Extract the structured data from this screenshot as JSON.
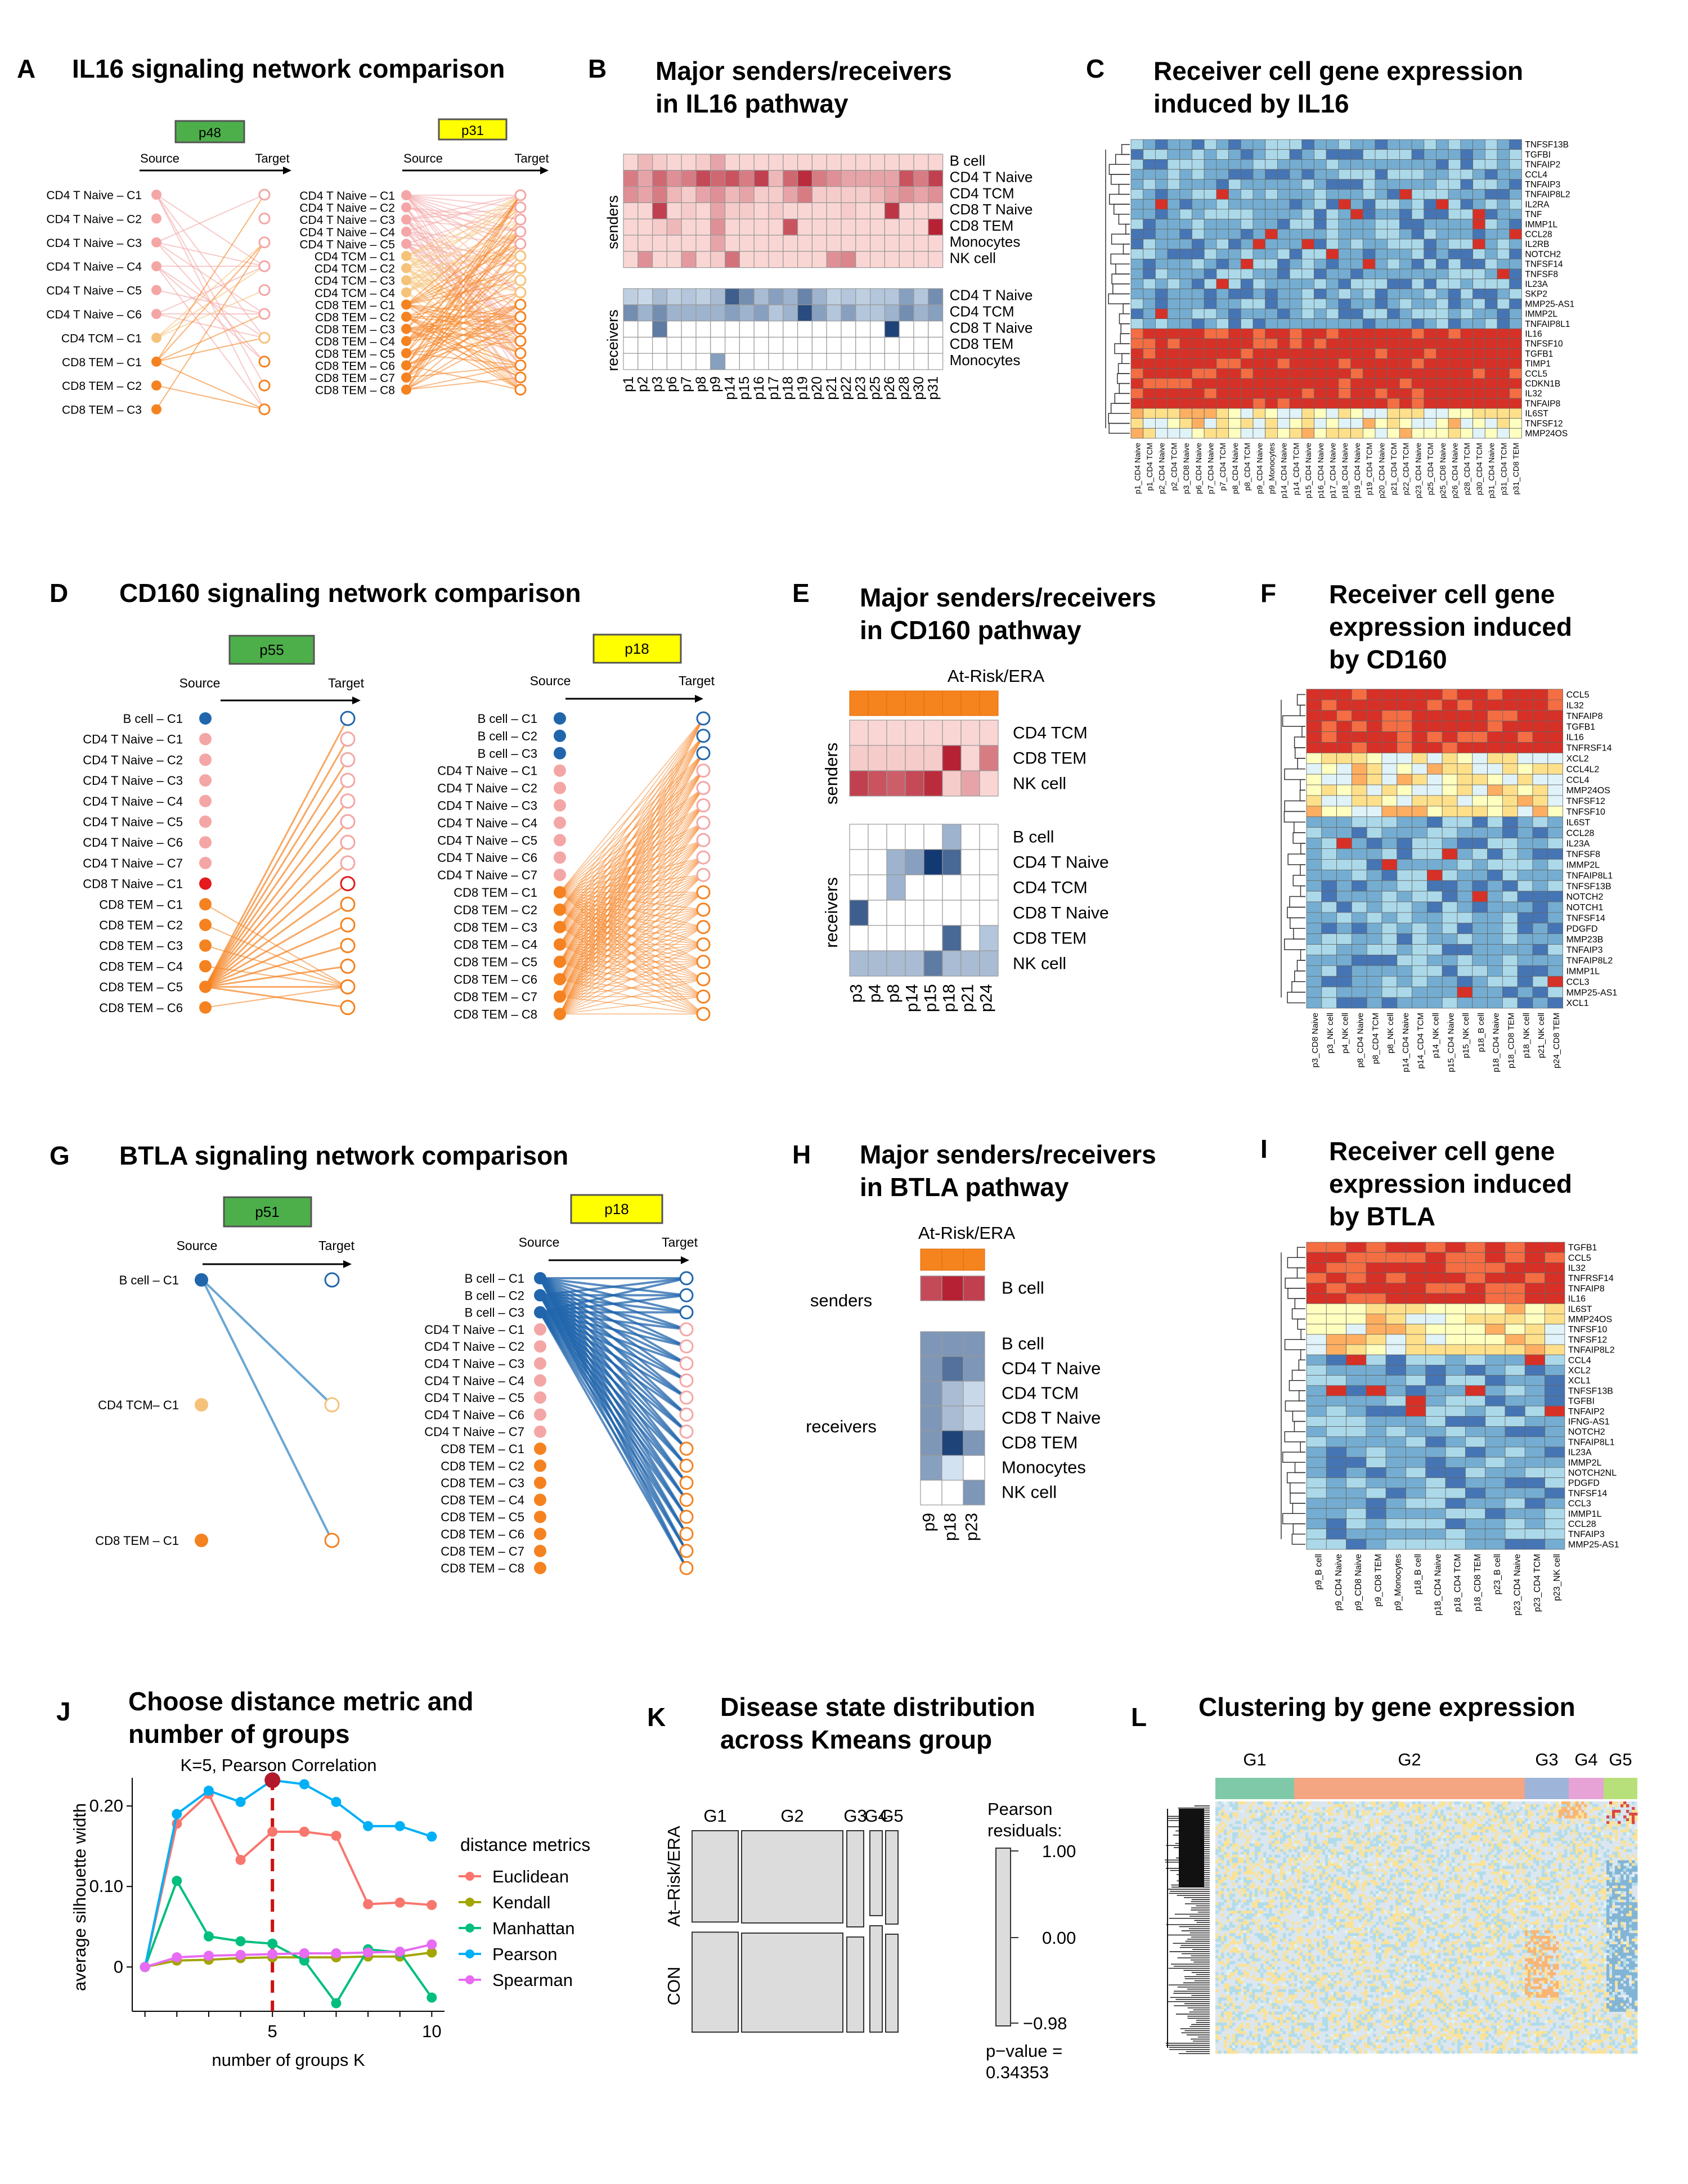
{
  "colors": {
    "senders_high": "#b2182b",
    "senders_low": "#fde0dd",
    "receivers_high": "#08306b",
    "receivers_low": "#deebf7",
    "box_green": "#4daf4a",
    "box_yellow": "#ffff00",
    "at_risk_orange": "#f5841f",
    "naive_pink": "#f4a6a6",
    "tcm_light_orange": "#f6c27a",
    "tem_orange": "#f58220",
    "bcell_blue": "#2166ac",
    "naive_red": "#e41a1c",
    "cluster_G1": "#7fc9a8",
    "cluster_G2": "#f4a582",
    "cluster_G3": "#9fb4d9",
    "cluster_G4": "#e7a3d6",
    "cluster_G5": "#b8e07a"
  },
  "panelA": {
    "letter": "A",
    "title": "IL16 signaling network comparison",
    "left_box": "p48",
    "right_box": "p31",
    "source": "Source",
    "target": "Target",
    "left_nodes": [
      "CD4 T Naive – C1",
      "CD4 T Naive – C2",
      "CD4 T Naive – C3",
      "CD4 T Naive – C4",
      "CD4 T Naive – C5",
      "CD4 T Naive – C6",
      "CD4 TCM – C1",
      "CD8 TEM – C1",
      "CD8 TEM – C2",
      "CD8 TEM – C3"
    ],
    "right_nodes": [
      "CD4 T Naive – C1",
      "CD4 T Naive – C2",
      "CD4 T Naive – C3",
      "CD4 T Naive – C4",
      "CD4 T Naive – C5",
      "CD4 TCM – C1",
      "CD4 TCM – C2",
      "CD4 TCM – C3",
      "CD4 TCM – C4",
      "CD8 TEM – C1",
      "CD8 TEM – C2",
      "CD8 TEM – C3",
      "CD8 TEM – C4",
      "CD8 TEM – C5",
      "CD8 TEM – C6",
      "CD8 TEM – C7",
      "CD8 TEM – C8"
    ]
  },
  "panelB": {
    "letter": "B",
    "title_line1": "Major senders/receivers",
    "title_line2": "in IL16 pathway",
    "senders_label": "senders",
    "receivers_label": "receivers",
    "sender_rows": [
      "B cell",
      "CD4 T Naive",
      "CD4 TCM",
      "CD8 T Naive",
      "CD8 TEM",
      "Monocytes",
      "NK cell"
    ],
    "receiver_rows": [
      "CD4 T Naive",
      "CD4 TCM",
      "CD8 T Naive",
      "CD8 TEM",
      "Monocytes"
    ],
    "columns": [
      "p1",
      "p2",
      "p3",
      "p6",
      "p7",
      "p8",
      "p9",
      "p14",
      "p15",
      "p16",
      "p17",
      "p18",
      "p19",
      "p20",
      "p21",
      "p22",
      "p23",
      "p25",
      "p26",
      "p28",
      "p30",
      "p31"
    ],
    "sender_values": [
      [
        0.05,
        0.2,
        0.1,
        0.05,
        0.05,
        0.1,
        0.3,
        0.05,
        0.05,
        0.05,
        0.05,
        0.05,
        0.05,
        0.05,
        0.05,
        0.05,
        0.05,
        0.05,
        0.05,
        0.05,
        0.05,
        0.05
      ],
      [
        0.5,
        0.3,
        0.6,
        0.4,
        0.5,
        0.75,
        0.6,
        0.7,
        0.5,
        0.8,
        0.2,
        0.6,
        0.9,
        0.5,
        0.4,
        0.3,
        0.3,
        0.3,
        0.3,
        0.7,
        0.5,
        0.8
      ],
      [
        0.4,
        0.3,
        0.5,
        0.2,
        0.1,
        0.3,
        0.4,
        0.2,
        0.3,
        0.1,
        0.1,
        0.3,
        0.5,
        0.1,
        0.1,
        0.1,
        0.1,
        0.2,
        0.3,
        0.4,
        0.3,
        0.4
      ],
      [
        0.05,
        0.05,
        0.8,
        0.05,
        0.1,
        0.05,
        0.3,
        0.1,
        0.1,
        0.05,
        0.1,
        0.05,
        0.05,
        0.05,
        0.05,
        0.1,
        0.05,
        0.05,
        0.85,
        0.05,
        0.05,
        0.05
      ],
      [
        0.05,
        0.05,
        0.1,
        0.2,
        0.05,
        0.05,
        0.4,
        0.05,
        0.05,
        0.05,
        0.05,
        0.7,
        0.05,
        0.05,
        0.05,
        0.05,
        0.05,
        0.05,
        0.05,
        0.05,
        0.05,
        0.95
      ],
      [
        0.05,
        0.05,
        0.05,
        0.05,
        0.05,
        0.05,
        0.3,
        0.05,
        0.05,
        0.05,
        0.05,
        0.05,
        0.05,
        0.05,
        0.05,
        0.05,
        0.05,
        0.05,
        0.05,
        0.05,
        0.05,
        0.05
      ],
      [
        0.05,
        0.4,
        0.05,
        0.05,
        0.35,
        0.05,
        0.1,
        0.55,
        0.05,
        0.05,
        0.05,
        0.05,
        0.05,
        0.05,
        0.4,
        0.45,
        0.05,
        0.05,
        0.05,
        0.05,
        0.05,
        0.05
      ]
    ],
    "receiver_values": [
      [
        0.15,
        0.1,
        0.25,
        0.15,
        0.2,
        0.15,
        0.25,
        0.75,
        0.5,
        0.25,
        0.4,
        0.3,
        0.55,
        0.3,
        0.15,
        0.2,
        0.15,
        0.2,
        0.2,
        0.4,
        0.2,
        0.5
      ],
      [
        0.5,
        0.3,
        0.5,
        0.3,
        0.3,
        0.3,
        0.3,
        0.4,
        0.3,
        0.4,
        0.2,
        0.3,
        0.85,
        0.4,
        0.2,
        0.4,
        0.2,
        0.2,
        0.3,
        0.5,
        0.3,
        0.4
      ],
      [
        0.0,
        0.0,
        0.6,
        0.0,
        0.0,
        0.0,
        0.0,
        0.0,
        0.0,
        0.0,
        0.0,
        0.0,
        0.0,
        0.0,
        0.0,
        0.0,
        0.0,
        0.0,
        0.9,
        0.0,
        0.0,
        0.0
      ],
      [
        0.0,
        0.0,
        0.0,
        0.0,
        0.0,
        0.0,
        0.0,
        0.0,
        0.0,
        0.0,
        0.0,
        0.0,
        0.0,
        0.0,
        0.0,
        0.0,
        0.0,
        0.0,
        0.0,
        0.0,
        0.0,
        0.0
      ],
      [
        0.0,
        0.0,
        0.0,
        0.0,
        0.0,
        0.0,
        0.4,
        0.0,
        0.0,
        0.0,
        0.0,
        0.0,
        0.0,
        0.0,
        0.0,
        0.0,
        0.0,
        0.0,
        0.0,
        0.0,
        0.0,
        0.0
      ]
    ]
  },
  "panelC": {
    "letter": "C",
    "title_line1": "Receiver cell gene expression",
    "title_line2": "induced by IL16",
    "genes": [
      "TNFSF13B",
      "TGFBI",
      "TNFAIP2",
      "CCL4",
      "TNFAIP3",
      "TNFAIP8L2",
      "IL2RA",
      "TNF",
      "IMMP1L",
      "CCL28",
      "IL2RB",
      "NOTCH2",
      "TNFSF14",
      "TNFSF8",
      "IL23A",
      "SKP2",
      "MMP25-AS1",
      "IMMP2L",
      "TNFAIP8L1",
      "IL16",
      "TNFSF10",
      "TGFB1",
      "TIMP1",
      "CCL5",
      "CDKN1B",
      "IL32",
      "TNFAIP8",
      "IL6ST",
      "TNFSF12",
      "MMP24OS"
    ],
    "columns": [
      "p1_CD4 Naive",
      "p1_CD4 TCM",
      "p2_CD4 Naive",
      "p2_CD4 TCM",
      "p3_CD8 Naive",
      "p6_CD4 Naive",
      "p7_CD4 Naive",
      "p7_CD4 TCM",
      "p8_CD4 Naive",
      "p8_CD4 TCM",
      "p9_CD4 Naive",
      "p9_Monocytes",
      "p14_CD4 Naive",
      "p14_CD4 TCM",
      "p15_CD4 Naive",
      "p16_CD4 Naive",
      "p17_CD4 Naive",
      "p18_CD4 Naive",
      "p19_CD4 Naive",
      "p19_CD4 TCM",
      "p20_CD4 Naive",
      "p21_CD4 TCM",
      "p22_CD4 TCM",
      "p23_CD4 Naive",
      "p25_CD4 TCM",
      "p25_CD8 Naive",
      "p26_CD4 Naive",
      "p28_CD4 TCM",
      "p30_CD4 TCM",
      "p31_CD4 Naive",
      "p31_CD4 TCM",
      "p31_CD8 TEM"
    ]
  },
  "panelD": {
    "letter": "D",
    "title": "CD160 signaling network comparison",
    "left_box": "p55",
    "right_box": "p18",
    "source": "Source",
    "target": "Target",
    "left_nodes": [
      "B cell – C1",
      "CD4 T Naive – C1",
      "CD4 T Naive – C2",
      "CD4 T Naive – C3",
      "CD4 T Naive – C4",
      "CD4 T Naive – C5",
      "CD4 T Naive – C6",
      "CD4 T Naive – C7",
      "CD8 T Naive – C1",
      "CD8 TEM – C1",
      "CD8 TEM – C2",
      "CD8 TEM – C3",
      "CD8 TEM – C4",
      "CD8 TEM – C5",
      "CD8 TEM – C6"
    ],
    "right_nodes": [
      "B cell – C1",
      "B cell – C2",
      "B cell – C3",
      "CD4 T Naive – C1",
      "CD4 T Naive – C2",
      "CD4 T Naive – C3",
      "CD4 T Naive – C4",
      "CD4 T Naive – C5",
      "CD4 T Naive – C6",
      "CD4 T Naive – C7",
      "CD8 TEM – C1",
      "CD8 TEM – C2",
      "CD8 TEM – C3",
      "CD8 TEM – C4",
      "CD8 TEM – C5",
      "CD8 TEM – C6",
      "CD8 TEM – C7",
      "CD8 TEM – C8"
    ]
  },
  "panelE": {
    "letter": "E",
    "title_line1": "Major senders/receivers",
    "title_line2": "in CD160 pathway",
    "group_label": "At-Risk/ERA",
    "senders_label": "senders",
    "receivers_label": "receivers",
    "sender_rows": [
      "CD4 TCM",
      "CD8 TEM",
      "NK cell"
    ],
    "receiver_rows": [
      "B cell",
      "CD4 T Naive",
      "CD4 TCM",
      "CD8 T Naive",
      "CD8 TEM",
      "NK cell"
    ],
    "columns": [
      "p3",
      "p4",
      "p8",
      "p14",
      "p15",
      "p18",
      "p21",
      "p24"
    ],
    "sender_values": [
      [
        0.05,
        0.05,
        0.05,
        0.05,
        0.05,
        0.05,
        0.05,
        0.05
      ],
      [
        0.1,
        0.1,
        0.1,
        0.1,
        0.1,
        0.95,
        0.05,
        0.5
      ],
      [
        0.8,
        0.7,
        0.65,
        0.75,
        0.9,
        0.1,
        0.3,
        0.05
      ]
    ],
    "receiver_values": [
      [
        0.0,
        0.0,
        0.0,
        0.0,
        0.0,
        0.3,
        0.0,
        0.0
      ],
      [
        0.0,
        0.0,
        0.3,
        0.4,
        0.95,
        0.7,
        0.0,
        0.0
      ],
      [
        0.0,
        0.0,
        0.3,
        0.0,
        0.0,
        0.0,
        0.0,
        0.0
      ],
      [
        0.75,
        0.0,
        0.0,
        0.0,
        0.0,
        0.0,
        0.0,
        0.0
      ],
      [
        0.0,
        0.0,
        0.0,
        0.0,
        0.0,
        0.7,
        0.0,
        0.2
      ],
      [
        0.25,
        0.25,
        0.25,
        0.25,
        0.6,
        0.25,
        0.25,
        0.25
      ]
    ]
  },
  "panelF": {
    "letter": "F",
    "title_line1": "Receiver cell gene",
    "title_line2": "expression induced",
    "title_line3": "by CD160",
    "genes": [
      "CCL5",
      "IL32",
      "TNFAIP8",
      "TGFB1",
      "IL16",
      "TNFRSF14",
      "XCL2",
      "CCL4L2",
      "CCL4",
      "MMP24OS",
      "TNFSF12",
      "TNFSF10",
      "IL6ST",
      "CCL28",
      "IL23A",
      "TNFSF8",
      "IMMP2L",
      "TNFAIP8L1",
      "TNFSF13B",
      "NOTCH2",
      "NOTCH1",
      "TNFSF14",
      "PDGFD",
      "MMP23B",
      "TNFAIP3",
      "TNFAIP8L2",
      "IMMP1L",
      "CCL3",
      "MMP25-AS1",
      "XCL1"
    ],
    "columns": [
      "p3_CD8 Naive",
      "p3_NK cell",
      "p4_NK cell",
      "p8_CD4 Naive",
      "p8_CD4 TCM",
      "p8_NK cell",
      "p14_CD4 Naive",
      "p14_CD4 TCM",
      "p14_NK cell",
      "p15_CD4 Naive",
      "p15_NK cell",
      "p18_B cell",
      "p18_CD4 Naive",
      "p18_CD8 TEM",
      "p18_NK cell",
      "p21_NK cell",
      "p24_CD8 TEM"
    ]
  },
  "panelG": {
    "letter": "G",
    "title": "BTLA signaling network comparison",
    "left_box": "p51",
    "right_box": "p18",
    "source": "Source",
    "target": "Target",
    "left_nodes": [
      "B cell – C1",
      "CD4 TCM– C1",
      "CD8 TEM – C1"
    ],
    "right_nodes": [
      "B cell – C1",
      "B cell – C2",
      "B cell – C3",
      "CD4 T Naive – C1",
      "CD4 T Naive – C2",
      "CD4 T Naive – C3",
      "CD4 T Naive – C4",
      "CD4 T Naive – C5",
      "CD4 T Naive – C6",
      "CD4 T Naive – C7",
      "CD8 TEM – C1",
      "CD8 TEM – C2",
      "CD8 TEM – C3",
      "CD8 TEM – C4",
      "CD8 TEM – C5",
      "CD8 TEM – C6",
      "CD8 TEM – C7",
      "CD8 TEM – C8"
    ]
  },
  "panelH": {
    "letter": "H",
    "title_line1": "Major senders/receivers",
    "title_line2": "in BTLA pathway",
    "group_label": "At-Risk/ERA",
    "senders_label": "senders",
    "receivers_label": "receivers",
    "sender_rows": [
      "B cell"
    ],
    "receiver_rows": [
      "B cell",
      "CD4 T Naive",
      "CD4 TCM",
      "CD8 T Naive",
      "CD8 TEM",
      "Monocytes",
      "NK cell"
    ],
    "columns": [
      "p9",
      "p18",
      "p23"
    ],
    "sender_values": [
      [
        0.75,
        0.95,
        0.8
      ]
    ],
    "receiver_values": [
      [
        0.45,
        0.45,
        0.45
      ],
      [
        0.45,
        0.65,
        0.45
      ],
      [
        0.45,
        0.25,
        0.1
      ],
      [
        0.45,
        0.25,
        0.1
      ],
      [
        0.45,
        0.9,
        0.45
      ],
      [
        0.4,
        0.05,
        0.0
      ],
      [
        0.0,
        0.0,
        0.45
      ]
    ]
  },
  "panelI": {
    "letter": "I",
    "title_line1": "Receiver cell gene",
    "title_line2": "expression induced",
    "title_line3": "by BTLA",
    "genes": [
      "TGFB1",
      "CCL5",
      "IL32",
      "TNFRSF14",
      "TNFAIP8",
      "IL16",
      "IL6ST",
      "MMP24OS",
      "TNFSF10",
      "TNFSF12",
      "TNFAIP8L2",
      "CCL4",
      "XCL2",
      "XCL1",
      "TNFSF13B",
      "TGFBI",
      "TNFAIP2",
      "IFNG-AS1",
      "NOTCH2",
      "TNFAIP8L1",
      "IL23A",
      "IMMP2L",
      "NOTCH2NL",
      "PDGFD",
      "TNFSF14",
      "CCL3",
      "IMMP1L",
      "CCL28",
      "TNFAIP3",
      "MMP25-AS1"
    ],
    "columns": [
      "p9_B cell",
      "p9_CD4 Naive",
      "p9_CD8 Naive",
      "p9_CD8 TEM",
      "p9_Monocytes",
      "p18_B cell",
      "p18_CD4 Naive",
      "p18_CD4 TCM",
      "p18_CD8 TEM",
      "p23_B cell",
      "p23_CD4 Naive",
      "p23_CD4 TCM",
      "p23_NK cell"
    ]
  },
  "panelJ": {
    "letter": "J",
    "title_line1": "Choose distance metric and",
    "title_line2": "number of groups",
    "annotation": "K=5, Pearson Correlation",
    "legend_title": "distance metrics"
  },
  "panelK": {
    "letter": "K",
    "title_line1": "Disease state distribution",
    "title_line2": "across Kmeans group",
    "groups": [
      "G1",
      "G2",
      "G3",
      "G4",
      "G5"
    ],
    "rows": [
      "At–Risk/ERA",
      "CON"
    ],
    "legend_title_line1": "Pearson",
    "legend_title_line2": "residuals:",
    "legend_max": "1.00",
    "legend_mid": "0.00",
    "legend_min": "−0.98",
    "pvalue_line1": "p−value =",
    "pvalue_line2": "0.34353"
  },
  "panelL": {
    "letter": "L",
    "title": "Clustering by gene expression",
    "groups": [
      "G1",
      "G2",
      "G3",
      "G4",
      "G5"
    ]
  },
  "chart_data": [
    {
      "type": "line",
      "xlabel": "number of groups K",
      "ylabel": "average silhouette width",
      "x": [
        1,
        2,
        3,
        4,
        5,
        6,
        7,
        8,
        9,
        10
      ],
      "xticks": [
        "5",
        "10"
      ],
      "yticks": [
        "0",
        "0.10",
        "0.20"
      ],
      "ylim": [
        -0.055,
        0.235
      ],
      "xlim": [
        0.6,
        10.4
      ],
      "highlight": {
        "x": 5,
        "series": "Pearson"
      },
      "legend": "right",
      "series": [
        {
          "name": "Euclidean",
          "color": "#f8766d",
          "values": [
            0.0,
            0.178,
            0.215,
            0.133,
            0.168,
            0.168,
            0.163,
            0.078,
            0.08,
            0.077
          ]
        },
        {
          "name": "Kendall",
          "color": "#a3a500",
          "values": [
            0.0,
            0.008,
            0.009,
            0.011,
            0.012,
            0.012,
            0.012,
            0.013,
            0.013,
            0.018
          ]
        },
        {
          "name": "Manhattan",
          "color": "#00bf7d",
          "values": [
            0.0,
            0.107,
            0.038,
            0.032,
            0.029,
            0.008,
            -0.045,
            0.022,
            0.018,
            -0.038
          ]
        },
        {
          "name": "Pearson",
          "color": "#00b0f6",
          "values": [
            0.0,
            0.19,
            0.219,
            0.205,
            0.232,
            0.227,
            0.205,
            0.175,
            0.175,
            0.162
          ]
        },
        {
          "name": "Spearman",
          "color": "#e76bf3",
          "values": [
            0.0,
            0.012,
            0.014,
            0.015,
            0.016,
            0.017,
            0.017,
            0.018,
            0.019,
            0.028
          ]
        }
      ]
    }
  ]
}
